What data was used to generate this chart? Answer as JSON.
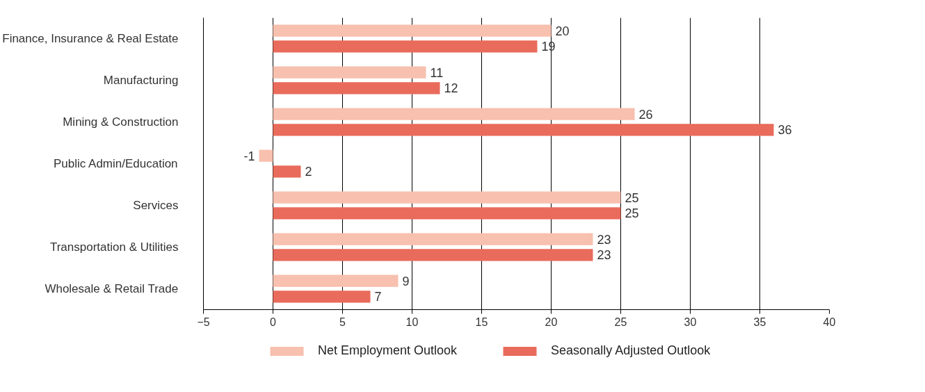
{
  "chart_data": {
    "type": "bar",
    "orientation": "horizontal",
    "categories": [
      "Finance, Insurance & Real Estate",
      "Manufacturing",
      "Mining & Construction",
      "Public Admin/Education",
      "Services",
      "Transportation & Utilities",
      "Wholesale & Retail Trade"
    ],
    "series": [
      {
        "name": "Net Employment Outlook",
        "color": "#f8c0ae",
        "values": [
          20,
          11,
          26,
          -1,
          25,
          23,
          9
        ]
      },
      {
        "name": "Seasonally Adjusted Outlook",
        "color": "#e96b5b",
        "values": [
          19,
          12,
          36,
          2,
          25,
          23,
          7
        ]
      }
    ],
    "xlim": [
      -5,
      40
    ],
    "xticks": [
      -5,
      0,
      5,
      10,
      15,
      20,
      25,
      30,
      35,
      40
    ],
    "grid": "x",
    "legend": "bottom",
    "data_labels": true
  }
}
